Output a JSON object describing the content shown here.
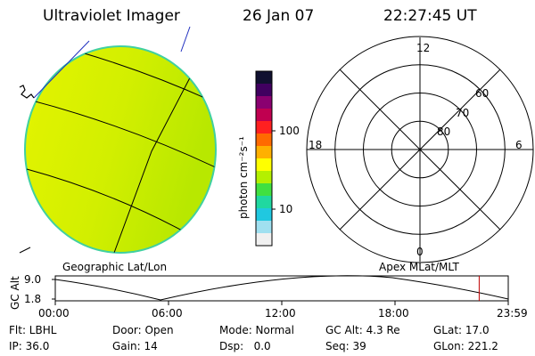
{
  "header": {
    "instrument": "Ultraviolet Imager",
    "date": "26 Jan 07",
    "time": "22:27:45 UT"
  },
  "colorbar": {
    "unit_label": "photon cm⁻²s⁻¹",
    "ticks": [
      {
        "label": "100",
        "value": 100
      },
      {
        "label": "10",
        "value": 10
      }
    ],
    "scale": "log",
    "colors": [
      "#101030",
      "#400060",
      "#8a0070",
      "#c00050",
      "#ff2020",
      "#ff6a00",
      "#ffb000",
      "#ffff00",
      "#b4f000",
      "#40e040",
      "#20d8a0",
      "#20c8e0",
      "#a0e0f0",
      "#f0f0f0"
    ]
  },
  "image_panel": {
    "label": "Geographic Lat/Lon",
    "disk_color": "#d8f000",
    "disk_edge_color": "#40d0a0"
  },
  "polar_panel": {
    "label": "Apex MLat/MLT",
    "mlt_labels": {
      "top": "12",
      "left": "18",
      "right": "6",
      "bottom": "0"
    },
    "lat_labels": [
      "60",
      "70",
      "80"
    ],
    "lat_rings": [
      50,
      60,
      70,
      80
    ]
  },
  "altitude_plot": {
    "ylabel": "GC Alt",
    "yticks": [
      "9.0",
      "1.8"
    ],
    "ylim": [
      1.8,
      9.0
    ],
    "xticks": [
      "00:00",
      "06:00",
      "12:00",
      "18:00",
      "23:59"
    ],
    "current_time_hours": 22.46,
    "marker_color": "#c00000"
  },
  "info": {
    "filter": "Flt: LBHL",
    "door": "Door: Open",
    "mode": "Mode: Normal",
    "gc_alt": "GC Alt: 4.3 Re",
    "glat": "GLat: 17.0",
    "ip": "IP: 36.0",
    "gain": "Gain: 14",
    "dsp": "Dsp:   0.0",
    "seq": "Seq: 39",
    "glon": "GLon: 221.2"
  }
}
